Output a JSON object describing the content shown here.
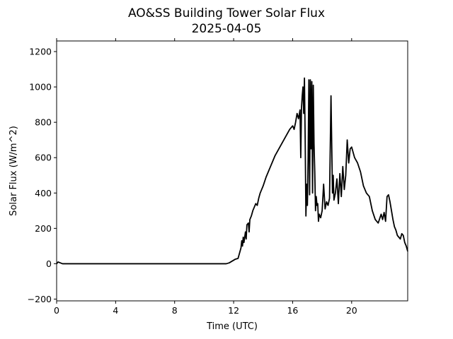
{
  "chart_data": {
    "type": "line",
    "title": "AO&SS Building Tower Solar Flux",
    "subtitle": "2025-04-05",
    "xlabel": "Time (UTC)",
    "ylabel": "Solar Flux (W/m^2)",
    "xlim": [
      0,
      23.8
    ],
    "ylim": [
      -210,
      1260
    ],
    "xticks": [
      0,
      4,
      8,
      12,
      16,
      20
    ],
    "xtick_labels": [
      "0",
      "4",
      "8",
      "12",
      "16",
      "20"
    ],
    "yticks": [
      -200,
      0,
      200,
      400,
      600,
      800,
      1000,
      1200
    ],
    "ytick_labels": [
      "−200",
      "0",
      "200",
      "400",
      "600",
      "800",
      "1000",
      "1200"
    ],
    "grid": false,
    "legend": "none",
    "line_color": "#000000",
    "series": [
      {
        "x": [
          0,
          0.1,
          0.25,
          0.4,
          1,
          4,
          8,
          11.5,
          11.7,
          11.9,
          12.1,
          12.3,
          12.4,
          12.5,
          12.55,
          12.6,
          12.65,
          12.7,
          12.8,
          12.85,
          12.9,
          13.0,
          13.05,
          13.1,
          13.2,
          13.3,
          13.4,
          13.5,
          13.6,
          13.7,
          13.8,
          13.9,
          14.0,
          14.2,
          14.4,
          14.6,
          14.8,
          15.0,
          15.2,
          15.4,
          15.6,
          15.8,
          16.0,
          16.1,
          16.2,
          16.3,
          16.4,
          16.5,
          16.55,
          16.6,
          16.65,
          16.7,
          16.75,
          16.8,
          16.85,
          16.9,
          16.95,
          17.0,
          17.05,
          17.1,
          17.15,
          17.2,
          17.25,
          17.3,
          17.35,
          17.4,
          17.45,
          17.5,
          17.55,
          17.6,
          17.65,
          17.7,
          17.75,
          17.8,
          17.9,
          18.0,
          18.1,
          18.2,
          18.3,
          18.4,
          18.5,
          18.6,
          18.7,
          18.75,
          18.8,
          18.9,
          19.0,
          19.1,
          19.2,
          19.3,
          19.4,
          19.5,
          19.6,
          19.7,
          19.8,
          19.9,
          20.0,
          20.2,
          20.4,
          20.6,
          20.8,
          21.0,
          21.2,
          21.4,
          21.6,
          21.8,
          22.0,
          22.1,
          22.2,
          22.3,
          22.4,
          22.5,
          22.6,
          22.7,
          22.8,
          22.9,
          23.0,
          23.1,
          23.2,
          23.3,
          23.4,
          23.5,
          23.6,
          23.7,
          23.8
        ],
        "y": [
          0,
          10,
          5,
          0,
          0,
          0,
          0,
          0,
          5,
          15,
          25,
          30,
          60,
          90,
          130,
          100,
          150,
          120,
          180,
          140,
          220,
          230,
          180,
          250,
          270,
          300,
          320,
          340,
          330,
          370,
          400,
          420,
          440,
          490,
          530,
          570,
          610,
          640,
          670,
          700,
          730,
          760,
          780,
          760,
          800,
          850,
          820,
          870,
          600,
          880,
          950,
          1000,
          850,
          1050,
          700,
          270,
          450,
          330,
          600,
          1040,
          390,
          1040,
          650,
          1030,
          400,
          1010,
          680,
          520,
          300,
          380,
          330,
          340,
          240,
          280,
          260,
          300,
          450,
          310,
          350,
          330,
          370,
          950,
          400,
          500,
          360,
          400,
          480,
          340,
          510,
          380,
          550,
          420,
          500,
          700,
          570,
          650,
          660,
          600,
          570,
          520,
          440,
          400,
          380,
          300,
          250,
          230,
          280,
          250,
          290,
          240,
          380,
          390,
          350,
          300,
          250,
          210,
          190,
          160,
          150,
          140,
          170,
          160,
          120,
          100,
          70
        ]
      }
    ]
  }
}
